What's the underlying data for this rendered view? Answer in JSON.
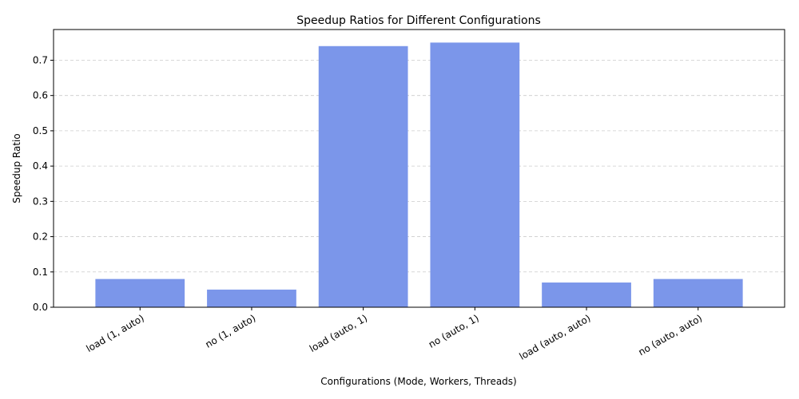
{
  "chart_data": {
    "type": "bar",
    "title": "Speedup Ratios for Different Configurations",
    "xlabel": "Configurations (Mode, Workers, Threads)",
    "ylabel": "Speedup Ratio",
    "categories": [
      "load (1, auto)",
      "no (1, auto)",
      "load (auto, 1)",
      "no (auto, 1)",
      "load (auto, auto)",
      "no (auto, auto)"
    ],
    "values": [
      0.08,
      0.05,
      0.74,
      0.75,
      0.07,
      0.08
    ],
    "ylim": [
      0,
      0.787
    ],
    "yticks": [
      "0.0",
      "0.1",
      "0.2",
      "0.3",
      "0.4",
      "0.5",
      "0.6",
      "0.7"
    ],
    "grid": "y",
    "bar_color": "#7b96ea",
    "grid_color": "#cccccc"
  }
}
